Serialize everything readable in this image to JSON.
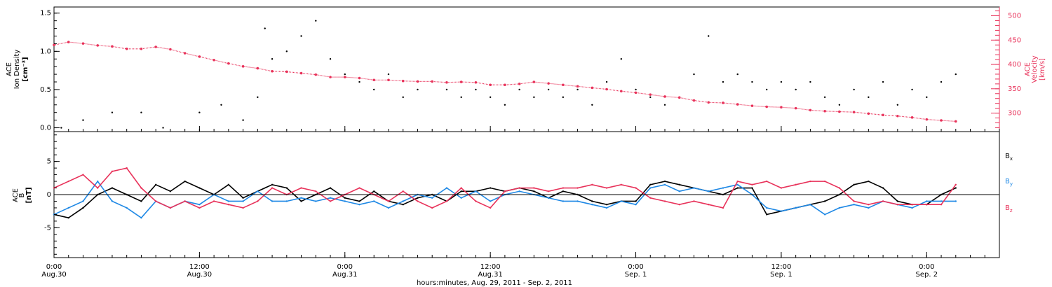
{
  "colors": {
    "black": "#000000",
    "pink": "#e8325a",
    "blue": "#1e88e5"
  },
  "time_axis": {
    "title": "hours:minutes, Aug. 29, 2011 - Sep.  2, 2011",
    "tick_times": [
      "0:00",
      "12:00",
      "0:00",
      "12:00",
      "0:00",
      "12:00",
      "0:00"
    ],
    "tick_dates": [
      "Aug.30",
      "Aug.30",
      "Aug.31",
      "Aug.31",
      "Sep. 1",
      "Sep. 1",
      "Sep. 2"
    ],
    "hours_range": [
      0,
      65
    ]
  },
  "chart_data": [
    {
      "type": "scatter",
      "ylabel_lines": [
        "ACE",
        "Ion Density",
        "[cm⁻³]"
      ],
      "ylim": [
        -0.05,
        1.58
      ],
      "yticks": [
        "0.0",
        "0.5",
        "1.0",
        "1.5"
      ],
      "y2label_lines": [
        "ACE",
        "Velocity",
        "[km/s]"
      ],
      "y2lim": [
        262,
        518
      ],
      "y2ticks": [
        "300",
        "350",
        "400",
        "450",
        "500"
      ],
      "series": [
        {
          "axis": "left",
          "color": "#000000",
          "x": [
            0.5,
            2,
            4,
            6,
            7.5,
            10,
            11.5,
            13,
            14,
            14.5,
            15,
            16,
            17,
            18,
            19,
            20,
            21,
            22,
            23,
            24,
            25,
            26,
            27,
            28,
            29,
            30,
            31,
            32,
            33,
            34,
            35,
            36,
            37,
            38,
            39,
            40,
            41,
            42,
            43,
            44,
            45,
            46,
            47,
            48,
            49,
            50,
            51,
            52,
            53,
            54,
            55,
            56,
            57,
            58,
            59,
            60,
            61,
            62
          ],
          "y": [
            0.0,
            0.1,
            0.2,
            0.2,
            0.0,
            0.2,
            0.3,
            0.1,
            0.4,
            1.3,
            0.9,
            1.0,
            1.2,
            1.4,
            0.9,
            0.7,
            0.6,
            0.5,
            0.7,
            0.4,
            0.5,
            0.6,
            0.5,
            0.4,
            0.5,
            0.4,
            0.3,
            0.5,
            0.4,
            0.5,
            0.4,
            0.5,
            0.3,
            0.6,
            0.9,
            0.5,
            0.4,
            0.3,
            0.4,
            0.7,
            1.2,
            0.6,
            0.7,
            0.6,
            0.5,
            0.6,
            0.5,
            0.6,
            0.4,
            0.3,
            0.5,
            0.4,
            0.6,
            0.3,
            0.5,
            0.4,
            0.6,
            0.7
          ]
        },
        {
          "axis": "right",
          "color": "#e8325a",
          "x": [
            0,
            1,
            2,
            3,
            4,
            5,
            6,
            7,
            8,
            9,
            10,
            11,
            12,
            13,
            14,
            15,
            16,
            17,
            18,
            19,
            20,
            21,
            22,
            23,
            24,
            25,
            26,
            27,
            28,
            29,
            30,
            31,
            32,
            33,
            34,
            35,
            36,
            37,
            38,
            39,
            40,
            41,
            42,
            43,
            44,
            45,
            46,
            47,
            48,
            49,
            50,
            51,
            52,
            53,
            54,
            55,
            56,
            57,
            58,
            59,
            60,
            61,
            62
          ],
          "y": [
            440,
            446,
            443,
            439,
            437,
            432,
            432,
            436,
            431,
            423,
            416,
            409,
            402,
            396,
            392,
            386,
            385,
            382,
            379,
            374,
            374,
            372,
            368,
            368,
            366,
            365,
            365,
            363,
            364,
            363,
            358,
            358,
            360,
            364,
            361,
            358,
            355,
            352,
            349,
            345,
            342,
            338,
            334,
            332,
            326,
            322,
            321,
            318,
            315,
            313,
            312,
            310,
            306,
            304,
            303,
            302,
            299,
            296,
            294,
            291,
            287,
            285,
            283
          ]
        }
      ]
    },
    {
      "type": "line",
      "ylabel_lines": [
        "ACE",
        "B",
        "[nT]"
      ],
      "ylim": [
        -9.5,
        9.5
      ],
      "yticks": [
        "-5",
        "0",
        "5"
      ],
      "legend": [
        "Bx",
        "By",
        "Bz"
      ],
      "legend_placement": "right",
      "series": [
        {
          "name": "Bx",
          "color": "#000000",
          "x": [
            0,
            1,
            2,
            3,
            4,
            5,
            6,
            7,
            8,
            9,
            10,
            11,
            12,
            13,
            14,
            15,
            16,
            17,
            18,
            19,
            20,
            21,
            22,
            23,
            24,
            25,
            26,
            27,
            28,
            29,
            30,
            31,
            32,
            33,
            34,
            35,
            36,
            37,
            38,
            39,
            40,
            41,
            42,
            43,
            44,
            45,
            46,
            47,
            48,
            49,
            50,
            51,
            52,
            53,
            54,
            55,
            56,
            57,
            58,
            59,
            60,
            61,
            62
          ],
          "y": [
            -3,
            -3.5,
            -2,
            0,
            1,
            0,
            -1,
            1.5,
            0.5,
            2,
            1,
            0,
            1.5,
            -0.5,
            0.5,
            1.5,
            1,
            -1,
            0,
            1,
            -0.5,
            -1,
            0.5,
            -1,
            -1.5,
            -0.5,
            0,
            -1,
            0.5,
            0.5,
            1,
            0.5,
            1,
            0.5,
            -0.5,
            0.5,
            0,
            -1,
            -1.5,
            -1,
            -1,
            1.5,
            2,
            1.5,
            1,
            0.5,
            0,
            1,
            1,
            -3,
            -2.5,
            -2,
            -1.5,
            -1,
            0,
            1.5,
            2,
            1,
            -1,
            -1.5,
            -1.5,
            0,
            1
          ]
        },
        {
          "name": "By",
          "color": "#1e88e5",
          "x": [
            0,
            1,
            2,
            3,
            4,
            5,
            6,
            7,
            8,
            9,
            10,
            11,
            12,
            13,
            14,
            15,
            16,
            17,
            18,
            19,
            20,
            21,
            22,
            23,
            24,
            25,
            26,
            27,
            28,
            29,
            30,
            31,
            32,
            33,
            34,
            35,
            36,
            37,
            38,
            39,
            40,
            41,
            42,
            43,
            44,
            45,
            46,
            47,
            48,
            49,
            50,
            51,
            52,
            53,
            54,
            55,
            56,
            57,
            58,
            59,
            60,
            61,
            62
          ],
          "y": [
            -3,
            -2,
            -1,
            2,
            -1,
            -2,
            -3.5,
            -1,
            -2,
            -1,
            -1.5,
            0,
            -1,
            -1,
            0.5,
            -1,
            -1,
            -0.5,
            -1,
            -0.5,
            -1,
            -1.5,
            -1,
            -2,
            -1,
            0,
            -0.5,
            1,
            -0.5,
            0.5,
            -1,
            0,
            0.5,
            0,
            -0.5,
            -1,
            -1,
            -1.5,
            -2,
            -1,
            -1.5,
            1,
            1.5,
            0.5,
            1,
            0.5,
            1,
            1.5,
            0,
            -2,
            -2.5,
            -2,
            -1.5,
            -3,
            -2,
            -1.5,
            -2,
            -1,
            -1.5,
            -2,
            -1,
            -1,
            -1
          ]
        },
        {
          "name": "Bz",
          "color": "#e8325a",
          "x": [
            0,
            1,
            2,
            3,
            4,
            5,
            6,
            7,
            8,
            9,
            10,
            11,
            12,
            13,
            14,
            15,
            16,
            17,
            18,
            19,
            20,
            21,
            22,
            23,
            24,
            25,
            26,
            27,
            28,
            29,
            30,
            31,
            32,
            33,
            34,
            35,
            36,
            37,
            38,
            39,
            40,
            41,
            42,
            43,
            44,
            45,
            46,
            47,
            48,
            49,
            50,
            51,
            52,
            53,
            54,
            55,
            56,
            57,
            58,
            59,
            60,
            61,
            62
          ],
          "y": [
            1,
            2,
            3,
            1,
            3.5,
            4,
            1,
            -1,
            -2,
            -1,
            -2,
            -1,
            -1.5,
            -2,
            -1,
            1,
            0,
            1,
            0.5,
            -1,
            0,
            1,
            0,
            -1,
            0.5,
            -1,
            -2,
            -1,
            1,
            -1,
            -2,
            0.5,
            1,
            1,
            0.5,
            1,
            1,
            1.5,
            1,
            1.5,
            1,
            -0.5,
            -1,
            -1.5,
            -1,
            -1.5,
            -2,
            2,
            1.5,
            2,
            1,
            1.5,
            2,
            2,
            1,
            -1,
            -1.5,
            -1,
            -1.5,
            -1.5,
            -1.5,
            -1.5,
            1.5
          ]
        }
      ]
    }
  ]
}
